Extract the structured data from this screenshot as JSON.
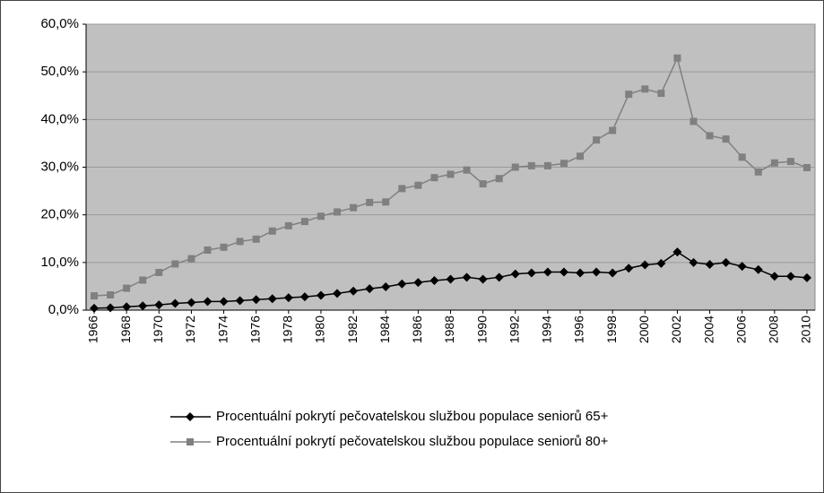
{
  "chart_data": {
    "type": "line",
    "x": [
      1966,
      1967,
      1968,
      1969,
      1970,
      1971,
      1972,
      1973,
      1974,
      1975,
      1976,
      1977,
      1978,
      1979,
      1980,
      1981,
      1982,
      1983,
      1984,
      1985,
      1986,
      1987,
      1988,
      1989,
      1990,
      1991,
      1992,
      1993,
      1994,
      1995,
      1996,
      1997,
      1998,
      1999,
      2000,
      2001,
      2002,
      2003,
      2004,
      2005,
      2006,
      2007,
      2008,
      2009,
      2010
    ],
    "xlim": [
      1965.5,
      2010.5
    ],
    "xticks": [
      1966,
      1968,
      1970,
      1972,
      1974,
      1976,
      1978,
      1980,
      1982,
      1984,
      1986,
      1988,
      1990,
      1992,
      1994,
      1996,
      1998,
      2000,
      2002,
      2004,
      2006,
      2008,
      2010
    ],
    "ylim": [
      0,
      60
    ],
    "yticks": [
      {
        "value": 0,
        "label": "0,0%"
      },
      {
        "value": 10,
        "label": "10,0%"
      },
      {
        "value": 20,
        "label": "20,0%"
      },
      {
        "value": 30,
        "label": "30,0%"
      },
      {
        "value": 40,
        "label": "40,0%"
      },
      {
        "value": 50,
        "label": "50,0%"
      },
      {
        "value": 60,
        "label": "60,0%"
      }
    ],
    "grid": true,
    "legend": "bottom",
    "series": [
      {
        "name": "Procentuální pokrytí pečovatelskou službou populace seniorů 65+",
        "color": "#000000",
        "marker": "diamond",
        "values": [
          0.4,
          0.5,
          0.7,
          0.9,
          1.1,
          1.4,
          1.6,
          1.8,
          1.8,
          2.0,
          2.2,
          2.4,
          2.6,
          2.8,
          3.1,
          3.5,
          4.0,
          4.5,
          4.9,
          5.5,
          5.8,
          6.2,
          6.5,
          6.9,
          6.5,
          6.9,
          7.6,
          7.8,
          8.0,
          8.0,
          7.8,
          8.0,
          7.8,
          8.8,
          9.5,
          9.8,
          12.2,
          10.0,
          9.6,
          10.0,
          9.2,
          8.5,
          7.1,
          7.1,
          6.8
        ]
      },
      {
        "name": "Procentuální pokrytí pečovatelskou službou populace seniorů 80+",
        "color": "#808080",
        "marker": "square",
        "values": [
          3.0,
          3.2,
          4.6,
          6.3,
          7.9,
          9.7,
          10.8,
          12.6,
          13.2,
          14.4,
          14.9,
          16.6,
          17.7,
          18.6,
          19.7,
          20.6,
          21.5,
          22.6,
          22.7,
          25.5,
          26.2,
          27.8,
          28.5,
          29.4,
          26.5,
          27.6,
          30.0,
          30.3,
          30.3,
          30.8,
          32.3,
          35.7,
          37.7,
          45.3,
          46.4,
          45.5,
          52.9,
          39.6,
          36.6,
          35.9,
          32.1,
          29.0,
          30.9,
          31.2,
          29.9
        ]
      }
    ]
  }
}
